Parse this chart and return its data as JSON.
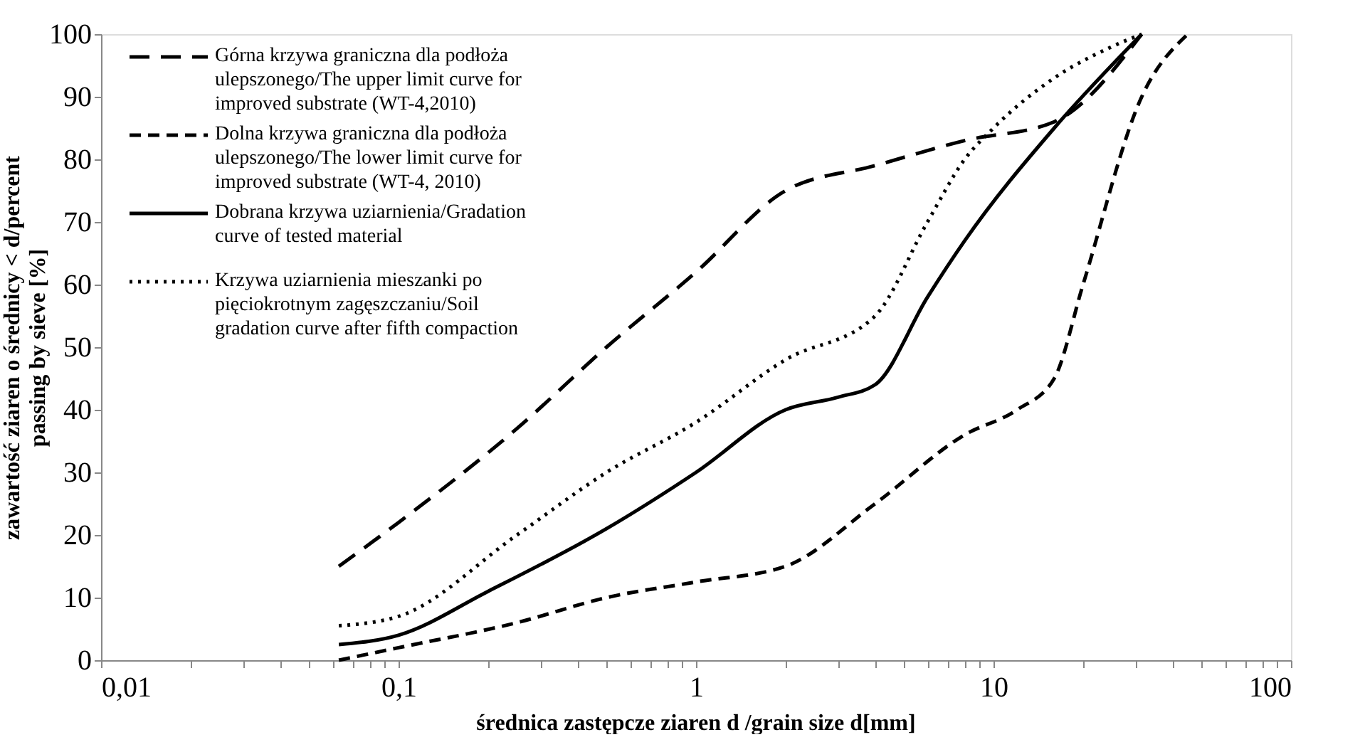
{
  "chart_data": {
    "type": "line",
    "xlabel": "średnica zastępcze ziaren d /grain size d[mm]",
    "ylabel": "zawartość ziaren o średnicy < d/percent passing by sieve [%]",
    "log": "x",
    "grid": false,
    "legend": "top left",
    "marker": "none",
    "xlim": [
      0.01,
      100
    ],
    "ylim": [
      0,
      100
    ],
    "xticks": [
      {
        "value": 0.01,
        "label": "0,01"
      },
      {
        "value": 0.02,
        "label": null
      },
      {
        "value": 0.03,
        "label": null
      },
      {
        "value": 0.04,
        "label": null
      },
      {
        "value": 0.05,
        "label": null
      },
      {
        "value": 0.06,
        "label": null
      },
      {
        "value": 0.07,
        "label": null
      },
      {
        "value": 0.08,
        "label": null
      },
      {
        "value": 0.09,
        "label": null
      },
      {
        "value": 0.1,
        "label": "0,1"
      },
      {
        "value": 0.2,
        "label": null
      },
      {
        "value": 0.3,
        "label": null
      },
      {
        "value": 0.4,
        "label": null
      },
      {
        "value": 0.5,
        "label": null
      },
      {
        "value": 0.6,
        "label": null
      },
      {
        "value": 0.7,
        "label": null
      },
      {
        "value": 0.8,
        "label": null
      },
      {
        "value": 0.9,
        "label": null
      },
      1,
      {
        "value": 2,
        "label": null
      },
      {
        "value": 3,
        "label": null
      },
      {
        "value": 4,
        "label": null
      },
      {
        "value": 5,
        "label": null
      },
      {
        "value": 6,
        "label": null
      },
      {
        "value": 7,
        "label": null
      },
      {
        "value": 8,
        "label": null
      },
      {
        "value": 9,
        "label": null
      },
      10,
      {
        "value": 20,
        "label": null
      },
      {
        "value": 30,
        "label": null
      },
      {
        "value": 40,
        "label": null
      },
      {
        "value": 50,
        "label": null
      },
      {
        "value": 60,
        "label": null
      },
      {
        "value": 70,
        "label": null
      },
      {
        "value": 80,
        "label": null
      },
      {
        "value": 90,
        "label": null
      },
      100
    ],
    "yticks": [
      0,
      10,
      20,
      30,
      40,
      50,
      60,
      70,
      80,
      90,
      100
    ],
    "series": [
      {
        "name": "Górna krzywa graniczna dla podłoża ulepszonego/The upper limit curve for improved substrate (WT-4,2010)",
        "color": "#000000",
        "line_style": "dashed",
        "x": [
          0.063,
          0.1,
          0.25,
          0.5,
          1,
          2,
          4,
          8,
          16,
          31.5
        ],
        "values": [
          15,
          22,
          37,
          50,
          62,
          75,
          79,
          83,
          86,
          100
        ]
      },
      {
        "name": "Dolna krzywa graniczna dla podłoża ulepszonego/The lower limit curve for improved substrate (WT-4, 2010)",
        "color": "#000000",
        "line_style": "dashed",
        "x": [
          0.063,
          0.1,
          0.25,
          0.5,
          1,
          2,
          4,
          8,
          12,
          16,
          20,
          31.5,
          45
        ],
        "values": [
          0,
          2,
          6,
          10,
          12.5,
          15,
          25,
          36,
          40,
          45,
          60,
          90,
          100
        ]
      },
      {
        "name": "Dobrana krzywa uziarnienia/Gradation curve of tested material",
        "color": "#000000",
        "line_style": "solid",
        "x": [
          0.063,
          0.1,
          0.2,
          0.5,
          1,
          2,
          3,
          4,
          6,
          8,
          16,
          31.5
        ],
        "values": [
          2.5,
          4,
          11,
          21,
          30,
          40,
          42,
          44,
          58,
          67,
          85,
          100
        ]
      },
      {
        "name": "Krzywa uziarnienia mieszanki po pięciokrotnym zagęszczaniu/Soil gradation curve after fifth compaction",
        "color": "#000000",
        "line_style": "dotted",
        "x": [
          0.063,
          0.1,
          0.25,
          0.5,
          1,
          2,
          4,
          6,
          8,
          10,
          16,
          25,
          31.5
        ],
        "values": [
          5.5,
          7,
          20,
          30,
          38,
          48,
          55,
          70,
          80,
          85,
          93,
          98,
          100
        ]
      }
    ]
  }
}
